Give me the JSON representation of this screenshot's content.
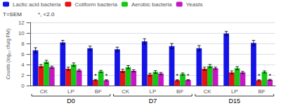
{
  "chart_data": {
    "type": "bar",
    "categories": [
      "CK",
      "LP",
      "BF",
      "CK",
      "LP",
      "BF",
      "CK",
      "LP",
      "BF"
    ],
    "category_groups": [
      {
        "label": "D0",
        "positions": [
          0,
          1,
          2
        ]
      },
      {
        "label": "D7",
        "positions": [
          3,
          4,
          5
        ]
      },
      {
        "label": "D15",
        "positions": [
          6,
          7,
          8
        ]
      }
    ],
    "series": [
      {
        "name": "Lactic acid bacteria",
        "color": "#1414e6",
        "values": [
          6.7,
          8.2,
          7.1,
          6.9,
          8.4,
          7.5,
          7.1,
          9.9,
          8.1
        ],
        "errors": [
          0.5,
          0.4,
          0.4,
          0.4,
          0.5,
          0.5,
          0.5,
          0.4,
          0.5
        ],
        "annotations": [
          null,
          null,
          null,
          null,
          null,
          null,
          null,
          null,
          null
        ]
      },
      {
        "name": "Coliform bacteria",
        "color": "#e61414",
        "values": [
          3.7,
          3.2,
          1.05,
          2.8,
          2.1,
          1.0,
          3.2,
          2.5,
          1.0
        ],
        "errors": [
          0.3,
          0.3,
          0.12,
          0.3,
          0.25,
          0.1,
          0.3,
          0.3,
          0.1
        ],
        "annotations": [
          null,
          null,
          "*",
          null,
          null,
          "*",
          null,
          null,
          "*"
        ]
      },
      {
        "name": "Aerobic bacteria",
        "color": "#14c814",
        "values": [
          4.5,
          4.0,
          2.7,
          3.5,
          2.6,
          2.2,
          3.7,
          3.3,
          2.6
        ],
        "errors": [
          0.3,
          0.3,
          0.2,
          0.3,
          0.25,
          0.2,
          0.3,
          0.3,
          0.2
        ],
        "annotations": [
          null,
          null,
          null,
          null,
          null,
          null,
          null,
          null,
          null
        ]
      },
      {
        "name": "Yeasts",
        "color": "#c814c8",
        "values": [
          3.5,
          2.9,
          1.0,
          2.8,
          2.3,
          1.05,
          3.3,
          2.5,
          1.1
        ],
        "errors": [
          0.2,
          0.2,
          0.1,
          0.2,
          0.2,
          0.1,
          0.2,
          0.2,
          0.1
        ],
        "annotations": [
          null,
          null,
          "*",
          null,
          null,
          "*",
          null,
          null,
          "*"
        ]
      }
    ],
    "ylabel": "Counts (log₁₀ cfu/g FM)",
    "notes": [
      "Τ=SEM",
      "*, <2.0"
    ],
    "ylim": [
      0,
      12
    ],
    "yticks": [
      0,
      2,
      4,
      6,
      8,
      10,
      12
    ],
    "grid": true,
    "legend": "upper left"
  }
}
